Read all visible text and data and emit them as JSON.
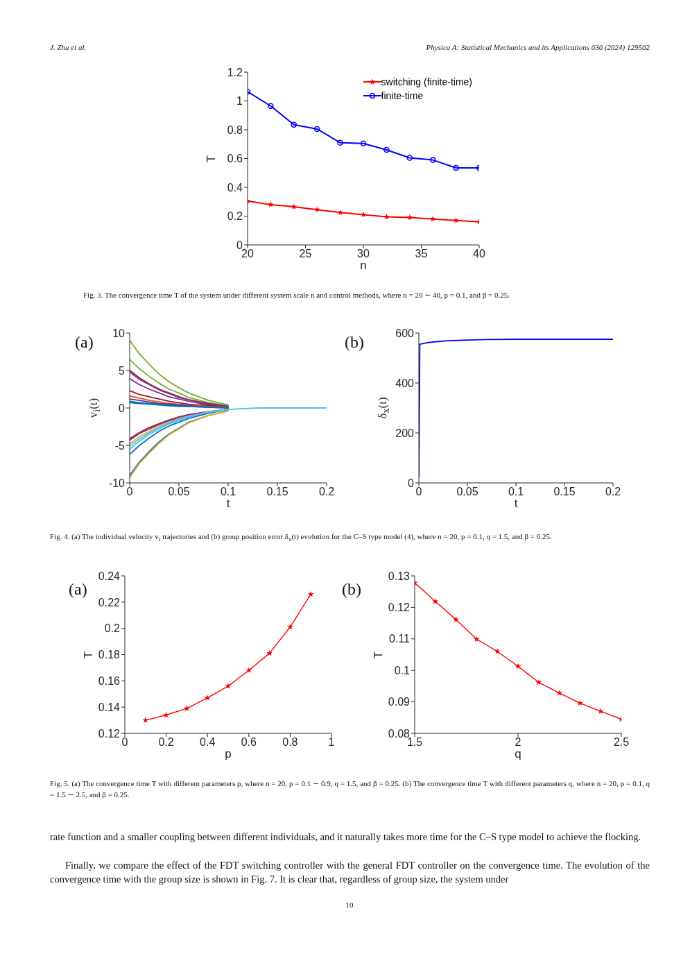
{
  "chart_data": [
    {
      "type": "line",
      "xlabel": "n",
      "ylabel": "T",
      "x": [
        20,
        22,
        24,
        26,
        28,
        30,
        32,
        34,
        36,
        38,
        40
      ],
      "xlim": [
        20,
        40
      ],
      "xticks": [
        20,
        25,
        30,
        35,
        40
      ],
      "ylim": [
        0,
        1.2
      ],
      "yticks": [
        0,
        0.2,
        0.4,
        0.6,
        0.8,
        1,
        1.2
      ],
      "legend": "top right",
      "series": [
        {
          "name": "switching (finite-time)",
          "color": "#ff0000",
          "marker": "star",
          "values": [
            0.305,
            0.28,
            0.265,
            0.245,
            0.225,
            0.21,
            0.195,
            0.19,
            0.18,
            0.17,
            0.16
          ]
        },
        {
          "name": "finite-time",
          "color": "#0000ff",
          "marker": "circle",
          "values": [
            1.065,
            0.965,
            0.835,
            0.805,
            0.71,
            0.705,
            0.66,
            0.605,
            0.59,
            0.535,
            0.535
          ]
        }
      ],
      "annotations": [
        "J. Zhu et al.",
        "Physica A: Statistical Mechanics and its Applications 636 (2024) 129562",
        "Fig. 3. The convergence time T of the system under different system scale n and control methods, where n = 20 ∼ 40, p = 0.1,  and β = 0.25."
      ]
    },
    {
      "type": "line",
      "xlabel": "t",
      "ylabel": "v$_{i}$(t)",
      "x": [
        0,
        0.01,
        0.02,
        0.03,
        0.04,
        0.05,
        0.06,
        0.08,
        0.1,
        0.13,
        0.2
      ],
      "xlim": [
        0,
        0.2
      ],
      "xticks": [
        0,
        0.05,
        0.1,
        0.15,
        0.2
      ],
      "ylim": [
        -10,
        10
      ],
      "yticks": [
        -10,
        -5,
        0,
        5,
        10
      ],
      "marker": "none",
      "series": [
        {
          "color": "#77ac30",
          "values": [
            9,
            7.2,
            5.8,
            4.5,
            3.5,
            2.7,
            2,
            1,
            0.4,
            null,
            null
          ]
        },
        {
          "color": "#77ac30",
          "values": [
            6.5,
            5.2,
            4.2,
            3.3,
            2.5,
            2,
            1.4,
            0.7,
            0.3,
            null,
            null
          ]
        },
        {
          "color": "#a2142f",
          "values": [
            5,
            4,
            3.2,
            2.5,
            2,
            1.5,
            1.1,
            0.6,
            0.2,
            null,
            null
          ]
        },
        {
          "color": "#7e2f8e",
          "values": [
            4.8,
            3.8,
            3.1,
            2.4,
            1.9,
            1.4,
            1.1,
            0.5,
            0.2,
            null,
            null
          ]
        },
        {
          "color": "#7e2f8e",
          "values": [
            3.9,
            3.1,
            2.5,
            2,
            1.5,
            1.2,
            0.9,
            0.4,
            0.2,
            null,
            null
          ]
        },
        {
          "color": "#a2142f",
          "values": [
            2.3,
            1.8,
            1.5,
            1.2,
            0.9,
            0.7,
            0.5,
            0.3,
            0.1,
            null,
            null
          ]
        },
        {
          "color": "#d95319",
          "values": [
            1.6,
            1.3,
            1,
            0.8,
            0.6,
            0.5,
            0.4,
            0.2,
            0.1,
            null,
            null
          ]
        },
        {
          "color": "#7e2f8e",
          "values": [
            1.2,
            1,
            0.8,
            0.6,
            0.5,
            0.4,
            0.3,
            0.1,
            0,
            null,
            null
          ]
        },
        {
          "color": "#0072bd",
          "values": [
            0.9,
            0.7,
            0.6,
            0.5,
            0.4,
            0.3,
            0.2,
            0.1,
            0,
            null,
            null
          ]
        },
        {
          "color": "#0072bd",
          "values": [
            0.7,
            0.6,
            0.5,
            0.4,
            0.3,
            0.2,
            0.2,
            0.1,
            null,
            null,
            null
          ]
        },
        {
          "color": "#a2142f",
          "values": [
            -4.1,
            -3.3,
            -2.6,
            -2.1,
            -1.6,
            -1.2,
            -0.9,
            -0.5,
            -0.2,
            null,
            null
          ]
        },
        {
          "color": "#7e2f8e",
          "values": [
            -4.3,
            -3.4,
            -2.8,
            -2.2,
            -1.7,
            -1.3,
            -0.9,
            -0.5,
            -0.2,
            null,
            null
          ]
        },
        {
          "color": "#edb120",
          "values": [
            -4.8,
            -3.8,
            -3.1,
            -2.4,
            -1.9,
            -1.4,
            -1.1,
            -0.5,
            -0.2,
            null,
            null
          ]
        },
        {
          "color": "#4dbeee",
          "values": [
            -5.5,
            -4.4,
            -3.5,
            -2.8,
            -2.1,
            -1.7,
            -1.2,
            -0.6,
            -0.2,
            null,
            null
          ]
        },
        {
          "color": "#0072bd",
          "values": [
            -6.2,
            -5,
            -4,
            -3.1,
            -2.4,
            -1.9,
            -1.4,
            -0.7,
            -0.2,
            null,
            null
          ]
        },
        {
          "color": "#0072bd",
          "values": [
            -9,
            -7.2,
            -5.8,
            -4.5,
            -3.5,
            -2.7,
            -1.9,
            -1,
            -0.4,
            null,
            null
          ]
        },
        {
          "color": "#edb120",
          "values": [
            -9.3,
            -7.4,
            -6,
            -4.7,
            -3.6,
            -2.8,
            -2,
            -1,
            -0.4,
            null,
            null
          ]
        },
        {
          "color": "#4dbeee",
          "values": [
            -5.1,
            -4.1,
            -3.3,
            -2.6,
            -2,
            -1.5,
            -1.1,
            -0.6,
            -0.2,
            0,
            0
          ]
        }
      ],
      "annotations": [
        "(a)"
      ]
    },
    {
      "type": "line",
      "xlabel": "t",
      "ylabel": "δ$_{x}$(t)",
      "xlim": [
        0,
        0.2
      ],
      "xticks": [
        0,
        0.05,
        0.1,
        0.15,
        0.2
      ],
      "ylim": [
        0,
        600
      ],
      "yticks": [
        0,
        200,
        400,
        600
      ],
      "marker": "none",
      "series": [
        {
          "color": "#0000ff",
          "x": [
            0,
            0.001,
            0.01,
            0.02,
            0.03,
            0.05,
            0.07,
            0.1,
            0.2
          ],
          "values": [
            25,
            555,
            562,
            566,
            569,
            572,
            574,
            575,
            575
          ]
        }
      ],
      "annotations": [
        "(b)",
        "Fig. 4. (a) The individual velocity v$_{i}$ trajectories and (b) group position error δ$_{x}$(t) evolution for the C–S type model (4), where n = 20, p = 0.1, q = 1.5, and β = 0.25."
      ]
    },
    {
      "type": "line",
      "xlabel": "p",
      "ylabel": "T",
      "x": [
        0.1,
        0.2,
        0.3,
        0.4,
        0.5,
        0.6,
        0.7,
        0.8,
        0.9
      ],
      "xlim": [
        0,
        1
      ],
      "xticks": [
        0,
        0.2,
        0.4,
        0.6,
        0.8,
        1
      ],
      "ylim": [
        0.12,
        0.24
      ],
      "yticks": [
        0.12,
        0.14,
        0.16,
        0.18,
        0.2,
        0.22,
        0.24
      ],
      "marker": "star",
      "series": [
        {
          "color": "#ff0000",
          "values": [
            0.13,
            0.134,
            0.139,
            0.147,
            0.156,
            0.168,
            0.181,
            0.201,
            0.226
          ]
        }
      ],
      "annotations": [
        "(a)"
      ]
    },
    {
      "type": "line",
      "xlabel": "q",
      "ylabel": "T",
      "x": [
        1.5,
        1.6,
        1.7,
        1.8,
        1.9,
        2,
        2.1,
        2.2,
        2.3,
        2.4,
        2.5
      ],
      "xlim": [
        1.5,
        2.5
      ],
      "xticks": [
        1.5,
        2,
        2.5
      ],
      "ylim": [
        0.08,
        0.13
      ],
      "yticks": [
        0.08,
        0.09,
        0.1,
        0.11,
        0.12,
        0.13
      ],
      "marker": "star",
      "series": [
        {
          "color": "#ff0000",
          "values": [
            0.1278,
            0.1219,
            0.1161,
            0.1099,
            0.106,
            0.1013,
            0.0962,
            0.0928,
            0.0896,
            0.087,
            0.0845
          ]
        }
      ],
      "annotations": [
        "(b)",
        "Fig. 5. (a) The convergence time T with different parameters p, where n = 20, p = 0.1 ∼ 0.9, q = 1.5, and β = 0.25. (b) The convergence time T with different parameters q, where n = 20, p = 0.1, q = 1.5 ∼ 2.5, and β = 0.25.",
        "rate function and a smaller coupling between different individuals, and it naturally takes more time for the C–S type model to achieve the flocking.",
        "Finally, we compare the effect of the FDT switching controller with the general FDT controller on the convergence time. The evolution of the convergence time with the group size is shown in Fig. 7. It is clear that, regardless of group size, the system under",
        "10"
      ]
    }
  ]
}
